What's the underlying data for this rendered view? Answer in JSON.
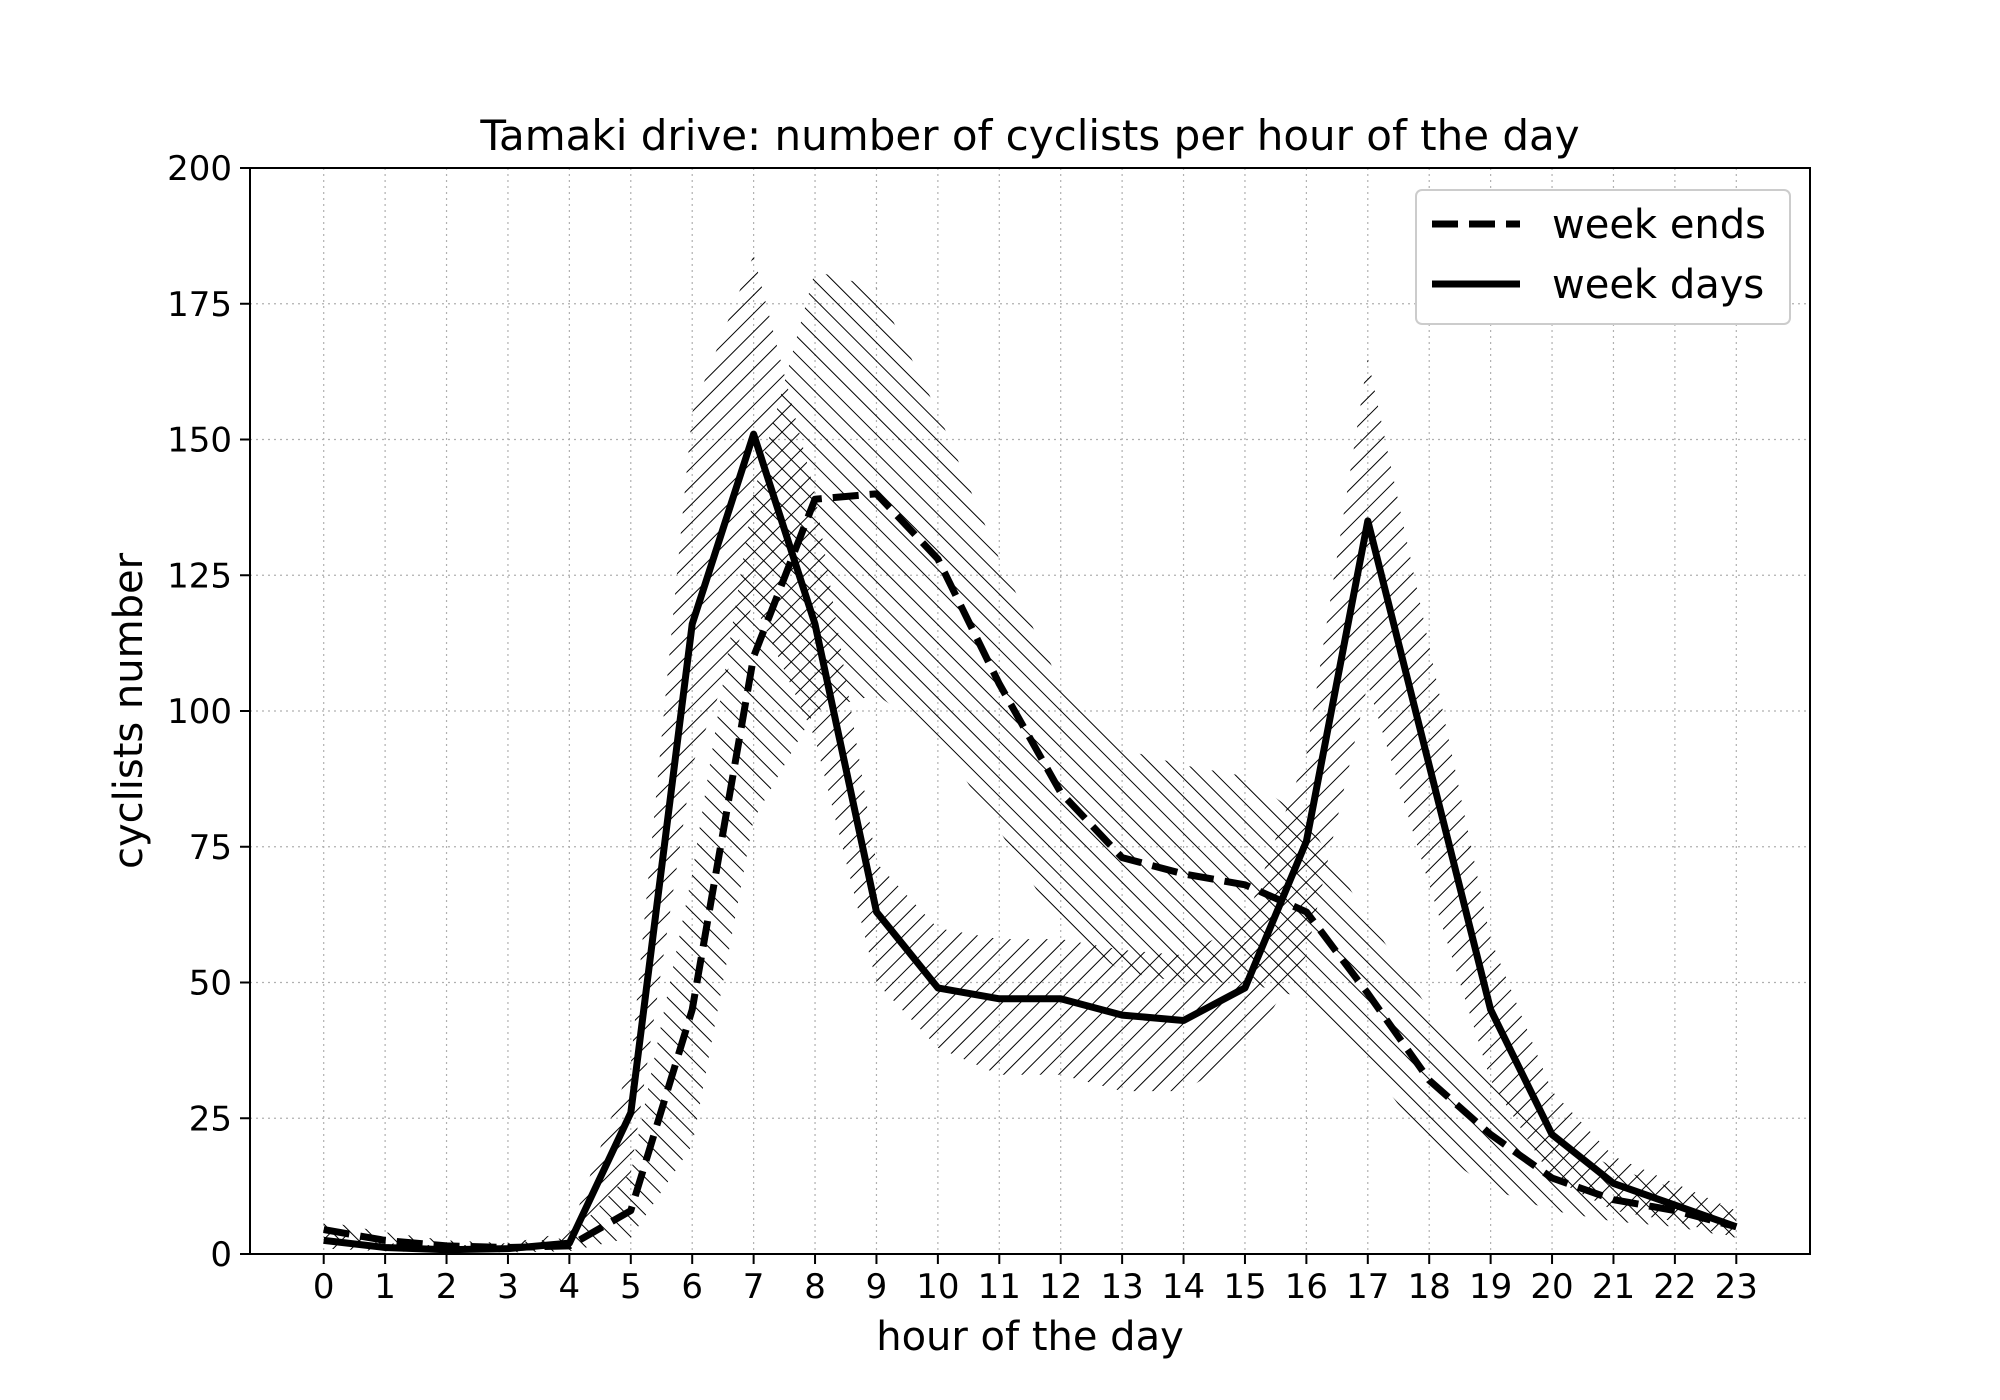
{
  "chart_data": {
    "type": "line",
    "title": "Tamaki drive: number of cyclists per hour of the day",
    "xlabel": "hour of the day",
    "ylabel": "cyclists number",
    "xlim": [
      -1.2,
      24.2
    ],
    "ylim": [
      0,
      200
    ],
    "x": [
      0,
      1,
      2,
      3,
      4,
      5,
      6,
      7,
      8,
      9,
      10,
      11,
      12,
      13,
      14,
      15,
      16,
      17,
      18,
      19,
      20,
      21,
      22,
      23
    ],
    "x_tick_labels": [
      "0",
      "1",
      "2",
      "3",
      "4",
      "5",
      "6",
      "7",
      "8",
      "9",
      "10",
      "11",
      "12",
      "13",
      "14",
      "15",
      "16",
      "17",
      "18",
      "19",
      "20",
      "21",
      "22",
      "23"
    ],
    "y_ticks": [
      0,
      25,
      50,
      75,
      100,
      125,
      150,
      175,
      200
    ],
    "y_tick_labels": [
      "0",
      "25",
      "50",
      "75",
      "100",
      "125",
      "150",
      "175",
      "200"
    ],
    "grid": true,
    "legend_position": "upper right",
    "series": [
      {
        "name": "week ends",
        "style": "dashed",
        "color": "#000000",
        "values": [
          4.5,
          2.5,
          1.5,
          1.2,
          1.5,
          8,
          45,
          110,
          139,
          140,
          128,
          105,
          85,
          73,
          70,
          68,
          63,
          48,
          32,
          22,
          14,
          10,
          8,
          5
        ],
        "lower": [
          2,
          1,
          0.5,
          0.3,
          0.5,
          3,
          20,
          80,
          100,
          103,
          95,
          78,
          60,
          52,
          50,
          50,
          47,
          35,
          20,
          12,
          8,
          6,
          5,
          3
        ],
        "upper": [
          6,
          4,
          2.5,
          2,
          3,
          15,
          70,
          140,
          181,
          178,
          155,
          128,
          105,
          93,
          90,
          88,
          80,
          62,
          45,
          33,
          22,
          16,
          12,
          8
        ]
      },
      {
        "name": "week days",
        "style": "solid",
        "color": "#000000",
        "values": [
          2.5,
          1.2,
          0.8,
          1,
          2,
          26,
          116,
          151,
          116,
          63,
          49,
          47,
          47,
          44,
          43,
          49,
          76,
          135,
          90,
          45,
          22,
          13,
          9,
          5
        ],
        "lower": [
          1,
          0.5,
          0.3,
          0.5,
          1,
          15,
          90,
          120,
          95,
          50,
          38,
          33,
          33,
          30,
          30,
          37,
          55,
          105,
          68,
          32,
          14,
          8,
          6,
          3
        ],
        "upper": [
          4,
          2,
          1.5,
          2,
          4,
          35,
          155,
          184,
          140,
          72,
          60,
          58,
          58,
          56,
          55,
          61,
          92,
          165,
          112,
          58,
          30,
          18,
          13,
          8
        ]
      }
    ]
  }
}
